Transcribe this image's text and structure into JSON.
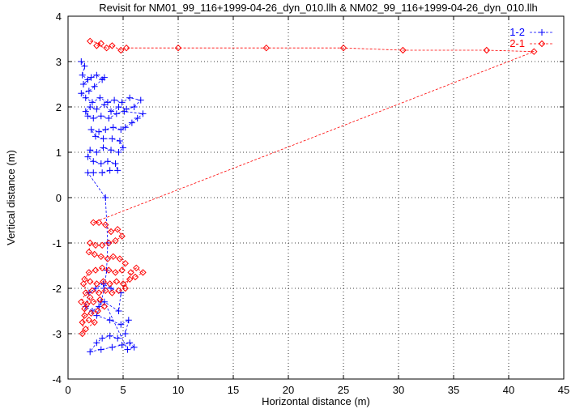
{
  "chart_data": {
    "type": "line",
    "title": "Revisit for NM01_99_116+1999-04-26_dyn_010.llh & NM02_99_116+1999-04-26_dyn_010.llh",
    "xlabel": "Horizontal distance (m)",
    "ylabel": "Vertical distance (m)",
    "xlim": [
      0,
      45
    ],
    "ylim": [
      -4,
      4
    ],
    "xticks": [
      0,
      5,
      10,
      15,
      20,
      25,
      30,
      35,
      40,
      45
    ],
    "yticks": [
      -4,
      -3,
      -2,
      -1,
      0,
      1,
      2,
      3,
      4
    ],
    "grid": true,
    "legend_position": "top-right",
    "series": [
      {
        "name": "1-2",
        "color": "#0000ff",
        "marker": "plus",
        "line": "dashed",
        "points": [
          [
            1.2,
            3.0
          ],
          [
            1.5,
            2.9
          ],
          [
            1.3,
            2.7
          ],
          [
            1.8,
            2.6
          ],
          [
            1.4,
            2.5
          ],
          [
            2.1,
            2.65
          ],
          [
            2.6,
            2.7
          ],
          [
            3.1,
            2.6
          ],
          [
            3.3,
            2.65
          ],
          [
            2.4,
            2.45
          ],
          [
            1.9,
            2.35
          ],
          [
            1.2,
            2.3
          ],
          [
            1.6,
            2.2
          ],
          [
            2.2,
            2.1
          ],
          [
            2.9,
            2.2
          ],
          [
            3.6,
            2.1
          ],
          [
            4.2,
            2.15
          ],
          [
            4.9,
            2.1
          ],
          [
            5.6,
            2.2
          ],
          [
            6.6,
            2.15
          ],
          [
            6.0,
            2.0
          ],
          [
            5.3,
            1.95
          ],
          [
            4.6,
            2.0
          ],
          [
            3.9,
            1.9
          ],
          [
            3.3,
            2.05
          ],
          [
            2.6,
            1.95
          ],
          [
            2.0,
            2.0
          ],
          [
            1.6,
            1.9
          ],
          [
            1.8,
            1.8
          ],
          [
            2.3,
            1.75
          ],
          [
            3.0,
            1.8
          ],
          [
            3.7,
            1.75
          ],
          [
            4.4,
            1.85
          ],
          [
            5.1,
            1.9
          ],
          [
            6.8,
            1.85
          ],
          [
            6.3,
            1.75
          ],
          [
            5.8,
            1.65
          ],
          [
            5.2,
            1.55
          ],
          [
            4.8,
            1.5
          ],
          [
            4.1,
            1.55
          ],
          [
            3.4,
            1.5
          ],
          [
            2.8,
            1.45
          ],
          [
            2.1,
            1.5
          ],
          [
            2.5,
            1.35
          ],
          [
            3.2,
            1.3
          ],
          [
            4.0,
            1.3
          ],
          [
            4.7,
            1.25
          ],
          [
            5.0,
            1.1
          ],
          [
            4.6,
            1.0
          ],
          [
            3.9,
            1.05
          ],
          [
            3.2,
            1.1
          ],
          [
            2.6,
            1.0
          ],
          [
            2.0,
            1.05
          ],
          [
            1.8,
            0.9
          ],
          [
            2.3,
            0.8
          ],
          [
            3.0,
            0.75
          ],
          [
            3.6,
            0.8
          ],
          [
            4.3,
            0.75
          ],
          [
            4.5,
            0.6
          ],
          [
            3.8,
            0.6
          ],
          [
            3.1,
            0.55
          ],
          [
            2.3,
            0.55
          ],
          [
            1.8,
            0.55
          ],
          [
            3.4,
            0.0
          ],
          [
            3.6,
            -1.0
          ],
          [
            3.5,
            -1.6
          ],
          [
            3.3,
            -2.0
          ],
          [
            3.0,
            -2.3
          ],
          [
            2.6,
            -2.6
          ],
          [
            3.8,
            -2.7
          ],
          [
            4.8,
            -2.8
          ],
          [
            5.5,
            -2.7
          ],
          [
            5.2,
            -3.0
          ],
          [
            4.5,
            -3.1
          ],
          [
            3.8,
            -3.05
          ],
          [
            3.1,
            -3.1
          ],
          [
            2.6,
            -3.2
          ],
          [
            2.0,
            -3.4
          ],
          [
            3.0,
            -3.35
          ],
          [
            4.0,
            -3.3
          ],
          [
            4.9,
            -3.25
          ],
          [
            5.6,
            -3.2
          ],
          [
            6.0,
            -3.3
          ],
          [
            5.4,
            -3.35
          ],
          [
            3.3,
            -2.3
          ],
          [
            4.6,
            -2.5
          ],
          [
            4.8,
            -2.1
          ],
          [
            3.9,
            -2.0
          ],
          [
            3.2,
            -1.9
          ],
          [
            2.5,
            -2.0
          ],
          [
            1.9,
            -2.1
          ],
          [
            1.6,
            -2.4
          ],
          [
            2.2,
            -2.5
          ],
          [
            2.8,
            -2.4
          ]
        ]
      },
      {
        "name": "2-1",
        "color": "#ff0000",
        "marker": "diamond",
        "line": "dashed",
        "points": [
          [
            2.0,
            3.45
          ],
          [
            3.0,
            3.4
          ],
          [
            2.6,
            3.35
          ],
          [
            3.5,
            3.3
          ],
          [
            4.0,
            3.35
          ],
          [
            4.8,
            3.25
          ],
          [
            5.3,
            3.3
          ],
          [
            10.0,
            3.3
          ],
          [
            18.0,
            3.3
          ],
          [
            25.0,
            3.3
          ],
          [
            30.4,
            3.25
          ],
          [
            38.0,
            3.25
          ],
          [
            42.3,
            3.22
          ],
          [
            2.3,
            -0.55
          ],
          [
            2.8,
            -0.55
          ],
          [
            3.4,
            -0.6
          ],
          [
            3.9,
            -0.75
          ],
          [
            4.5,
            -0.7
          ],
          [
            4.9,
            -0.85
          ],
          [
            4.3,
            -0.95
          ],
          [
            3.7,
            -1.0
          ],
          [
            3.1,
            -1.05
          ],
          [
            2.5,
            -1.05
          ],
          [
            2.0,
            -1.0
          ],
          [
            1.9,
            -1.2
          ],
          [
            2.4,
            -1.25
          ],
          [
            3.0,
            -1.3
          ],
          [
            3.6,
            -1.35
          ],
          [
            4.1,
            -1.3
          ],
          [
            4.7,
            -1.35
          ],
          [
            5.2,
            -1.45
          ],
          [
            4.9,
            -1.6
          ],
          [
            4.3,
            -1.65
          ],
          [
            3.7,
            -1.6
          ],
          [
            3.1,
            -1.55
          ],
          [
            2.5,
            -1.6
          ],
          [
            1.9,
            -1.65
          ],
          [
            1.5,
            -1.8
          ],
          [
            2.0,
            -1.85
          ],
          [
            2.6,
            -1.9
          ],
          [
            3.2,
            -1.85
          ],
          [
            3.8,
            -1.9
          ],
          [
            4.4,
            -1.85
          ],
          [
            5.0,
            -1.9
          ],
          [
            5.6,
            -1.8
          ],
          [
            6.1,
            -1.75
          ],
          [
            6.8,
            -1.65
          ],
          [
            6.2,
            -1.55
          ],
          [
            5.7,
            -1.65
          ],
          [
            5.2,
            -2.0
          ],
          [
            4.6,
            -2.05
          ],
          [
            4.0,
            -2.1
          ],
          [
            3.4,
            -2.05
          ],
          [
            2.8,
            -2.1
          ],
          [
            2.2,
            -2.05
          ],
          [
            1.6,
            -2.1
          ],
          [
            1.2,
            -2.3
          ],
          [
            1.7,
            -2.35
          ],
          [
            2.3,
            -2.3
          ],
          [
            2.9,
            -2.25
          ],
          [
            3.3,
            -2.4
          ],
          [
            2.7,
            -2.5
          ],
          [
            2.1,
            -2.55
          ],
          [
            1.5,
            -2.6
          ],
          [
            1.3,
            -2.75
          ],
          [
            1.9,
            -2.7
          ],
          [
            2.4,
            -2.75
          ],
          [
            1.6,
            -2.9
          ],
          [
            1.3,
            -3.0
          ],
          [
            1.5,
            -2.45
          ],
          [
            2.0,
            -2.2
          ],
          [
            1.4,
            -1.9
          ]
        ]
      }
    ]
  }
}
